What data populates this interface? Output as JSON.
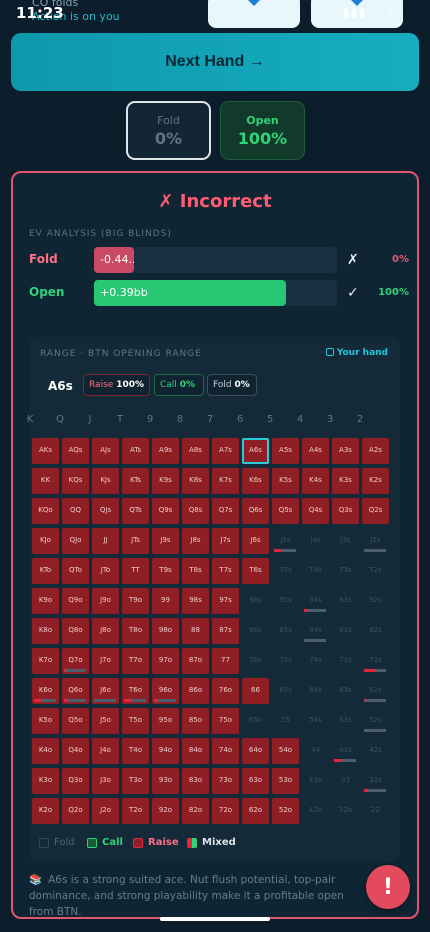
{
  "status": {
    "time": "11:23",
    "icons": "▮▮▮ ◠ ▭"
  },
  "top_info": {
    "line1": "CO folds",
    "line2": "Action is on you"
  },
  "next_hand_label": "Next Hand →",
  "actions": {
    "fold": {
      "label": "Fold",
      "pct": "0%"
    },
    "open": {
      "label": "Open",
      "pct": "100%"
    }
  },
  "verdict": "✗ Incorrect",
  "ev": {
    "title": "EV ANALYSIS (BIG BLINDS)",
    "fold": {
      "label": "Fold",
      "value": "-0.44...",
      "mark": "✗",
      "pct": "0%",
      "fill": 0.165
    },
    "open": {
      "label": "Open",
      "value": "+0.39bb",
      "mark": "✓",
      "pct": "100%",
      "fill": 0.79
    }
  },
  "range": {
    "title": "RANGE · BTN OPENING RANGE",
    "your_hand_label": "Your hand",
    "hand": "A6s",
    "raise_label": "Raise",
    "raise_pct": "100%",
    "call_label": "Call",
    "call_pct": "0%",
    "fold_label": "Fold",
    "fold_pct": "0%"
  },
  "col_headers": [
    "K",
    "Q",
    "J",
    "T",
    "9",
    "8",
    "7",
    "6",
    "5",
    "4",
    "3",
    "2"
  ],
  "grid": {
    "highlight": "A6s",
    "rows": [
      [
        "AKs",
        "AQs",
        "AJs",
        "ATs",
        "A9s",
        "A8s",
        "A7s",
        "A6s",
        "A5s",
        "A4s",
        "A3s",
        "A2s"
      ],
      [
        "KK",
        "KQs",
        "KJs",
        "KTs",
        "K9s",
        "K8s",
        "K7s",
        "K6s",
        "K5s",
        "K4s",
        "K3s",
        "K2s"
      ],
      [
        "KQo",
        "QQ",
        "QJs",
        "QTs",
        "Q9s",
        "Q8s",
        "Q7s",
        "Q6s",
        "Q5s",
        "Q4s",
        "Q3s",
        "Q2s"
      ],
      [
        "KJo",
        "QJo",
        "JJ",
        "JTs",
        "J9s",
        "J8s",
        "J7s",
        "J6s",
        "J5s",
        "J4s",
        "J3s",
        "J2s"
      ],
      [
        "KTo",
        "QTo",
        "JTo",
        "TT",
        "T9s",
        "T8s",
        "T7s",
        "T6s",
        "T5s",
        "T4s",
        "T3s",
        "T2s"
      ],
      [
        "K9o",
        "Q9o",
        "J9o",
        "T9o",
        "99",
        "98s",
        "97s",
        "96s",
        "95s",
        "94s",
        "93s",
        "92s"
      ],
      [
        "K8o",
        "Q8o",
        "J8o",
        "T8o",
        "98o",
        "88",
        "87s",
        "86s",
        "85s",
        "84s",
        "83s",
        "82s"
      ],
      [
        "K7o",
        "Q7o",
        "J7o",
        "T7o",
        "97o",
        "87o",
        "77",
        "76s",
        "75s",
        "74s",
        "73s",
        "72s"
      ],
      [
        "K6o",
        "Q6o",
        "J6o",
        "T6o",
        "96o",
        "86o",
        "76o",
        "66",
        "65s",
        "64s",
        "63s",
        "62s"
      ],
      [
        "K5o",
        "Q5o",
        "J5o",
        "T5o",
        "95o",
        "85o",
        "75o",
        "65o",
        "55",
        "54s",
        "53s",
        "52s"
      ],
      [
        "K4o",
        "Q4o",
        "J4o",
        "T4o",
        "94o",
        "84o",
        "74o",
        "64o",
        "54o",
        "44",
        "43s",
        "42s"
      ],
      [
        "K3o",
        "Q3o",
        "J3o",
        "T3o",
        "93o",
        "83o",
        "73o",
        "63o",
        "53o",
        "43o",
        "33",
        "32s"
      ],
      [
        "K2o",
        "Q2o",
        "J2o",
        "T2o",
        "92o",
        "82o",
        "72o",
        "62o",
        "52o",
        "42o",
        "32o",
        "22"
      ]
    ],
    "raise_counts": [
      12,
      12,
      12,
      8,
      8,
      7,
      7,
      7,
      8,
      7,
      9,
      9,
      9
    ],
    "mixed": [
      {
        "r": 3,
        "c": 8,
        "raise": 0.3
      },
      {
        "r": 5,
        "c": 9,
        "raise": 0.2
      },
      {
        "r": 6,
        "c": 9,
        "raise": 0.0
      },
      {
        "r": 7,
        "c": 1,
        "raise": 0.1
      },
      {
        "r": 7,
        "c": 11,
        "raise": 0.5
      },
      {
        "r": 8,
        "c": 0,
        "raise": 0.3
      },
      {
        "r": 8,
        "c": 1,
        "raise": 0.2
      },
      {
        "r": 8,
        "c": 2,
        "raise": 0.0
      },
      {
        "r": 8,
        "c": 3,
        "raise": 0.3
      },
      {
        "r": 8,
        "c": 4,
        "raise": 0.2
      },
      {
        "r": 8,
        "c": 11,
        "raise": 0.1
      },
      {
        "r": 9,
        "c": 11,
        "raise": 0.0
      },
      {
        "r": 10,
        "c": 10,
        "raise": 0.3
      },
      {
        "r": 11,
        "c": 11,
        "raise": 0.2
      },
      {
        "r": 3,
        "c": 11,
        "raise": 0.0
      }
    ]
  },
  "legend": {
    "fold": "Fold",
    "call": "Call",
    "raise": "Raise",
    "mixed": "Mixed"
  },
  "explanation": "A6s is a strong suited ace. Nut flush potential, top-pair dominance, and strong playability make it a profitable open from BTN.",
  "explanation_icon": "📚",
  "alert_label": "!"
}
